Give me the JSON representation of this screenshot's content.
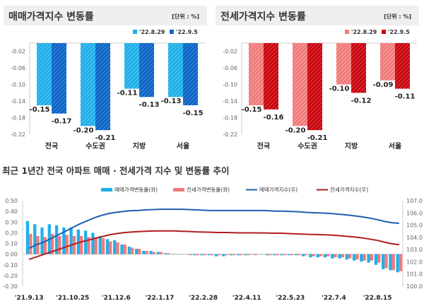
{
  "colors": {
    "sale_light": "#1fb0ea",
    "sale_dark": "#0a64c8",
    "jeonse_light": "#f27a7a",
    "jeonse_dark": "#c8000a",
    "sale_line": "#1e5fae",
    "jeonse_line": "#b01e1e",
    "title_bg": "#efefef"
  },
  "chart_data": [
    {
      "type": "bar",
      "title": "매매가격지수 변동률",
      "unit": "[단위 : %]",
      "categories": [
        "전국",
        "수도권",
        "지방",
        "서울"
      ],
      "series": [
        {
          "name": "'22.8.29",
          "values": [
            -0.15,
            -0.2,
            -0.11,
            -0.13
          ]
        },
        {
          "name": "'22.9.5",
          "values": [
            -0.17,
            -0.21,
            -0.13,
            -0.15
          ]
        }
      ],
      "ylim": [
        -0.22,
        0
      ],
      "yticks": [
        "-0.02",
        "-0.06",
        "-0.10",
        "-0.14",
        "-0.18",
        "-0.22"
      ],
      "legend": "top-right"
    },
    {
      "type": "bar",
      "title": "전세가격지수 변동률",
      "unit": "[단위 : %]",
      "categories": [
        "전국",
        "수도권",
        "지방",
        "서울"
      ],
      "series": [
        {
          "name": "'22.8.29",
          "values": [
            -0.15,
            -0.2,
            -0.1,
            -0.09
          ]
        },
        {
          "name": "'22.9.5",
          "values": [
            -0.16,
            -0.21,
            -0.12,
            -0.11
          ]
        }
      ],
      "ylim": [
        -0.22,
        0
      ],
      "yticks": [
        "-0.02",
        "-0.06",
        "-0.10",
        "-0.14",
        "-0.18",
        "-0.22"
      ],
      "legend": "top-right"
    },
    {
      "type": "bar+line",
      "title": "최근 1년간 전국 아파트 매매 · 전세가격 지수 및 변동률 추이",
      "xticks": [
        "'21.9.13",
        "'21.10.25",
        "'21.12.6",
        "'22.1.17",
        "'22.2.28",
        "'22.4.11",
        "'22.5.23",
        "'22.7.4",
        "'22.8.15"
      ],
      "ylim_left": [
        -0.3,
        0.5
      ],
      "yticks_left": [
        "0.50",
        "0.40",
        "0.30",
        "0.20",
        "0.10",
        "0.00",
        "-0.10",
        "-0.20",
        "-0.30"
      ],
      "ylim_right": [
        100.0,
        107.0
      ],
      "yticks_right": [
        "107.0",
        "106.0",
        "105.0",
        "104.0",
        "103.0",
        "102.0",
        "101.0",
        "100.0"
      ],
      "legend": "top",
      "series": [
        {
          "name": "매매가격변동률(좌)",
          "kind": "bar",
          "axis": "left",
          "values": [
            0.31,
            0.28,
            0.25,
            0.28,
            0.27,
            0.25,
            0.25,
            0.23,
            0.22,
            0.2,
            0.17,
            0.14,
            0.13,
            0.09,
            0.07,
            0.05,
            0.03,
            0.03,
            0.02,
            0.01,
            0.0,
            0.0,
            0.0,
            -0.01,
            -0.01,
            -0.01,
            -0.02,
            -0.02,
            -0.01,
            -0.01,
            -0.01,
            0.0,
            0.0,
            -0.01,
            -0.01,
            -0.01,
            -0.01,
            -0.01,
            -0.02,
            -0.03,
            -0.03,
            -0.03,
            -0.04,
            -0.04,
            -0.05,
            -0.06,
            -0.07,
            -0.08,
            -0.1,
            -0.14,
            -0.15,
            -0.17
          ]
        },
        {
          "name": "전세가격변동률(좌)",
          "kind": "bar",
          "axis": "left",
          "values": [
            0.19,
            0.17,
            0.16,
            0.19,
            0.17,
            0.18,
            0.17,
            0.17,
            0.16,
            0.16,
            0.15,
            0.12,
            0.11,
            0.09,
            0.06,
            0.05,
            0.03,
            0.02,
            0.02,
            0.01,
            0.0,
            0.0,
            -0.01,
            -0.01,
            -0.01,
            -0.01,
            -0.01,
            -0.01,
            -0.01,
            -0.01,
            -0.01,
            -0.01,
            0.0,
            -0.01,
            -0.01,
            -0.01,
            -0.01,
            -0.01,
            -0.01,
            -0.02,
            -0.02,
            -0.02,
            -0.03,
            -0.03,
            -0.04,
            -0.05,
            -0.06,
            -0.06,
            -0.08,
            -0.13,
            -0.15,
            -0.16
          ]
        },
        {
          "name": "매매가격지수(우)",
          "kind": "line",
          "axis": "right",
          "values": [
            103.1,
            103.4,
            103.6,
            103.9,
            104.2,
            104.5,
            104.8,
            105.1,
            105.35,
            105.6,
            105.8,
            105.95,
            106.05,
            106.12,
            106.18,
            106.2,
            106.25,
            106.27,
            106.3,
            106.3,
            106.3,
            106.3,
            106.28,
            106.25,
            106.22,
            106.2,
            106.2,
            106.2,
            106.2,
            106.2,
            106.2,
            106.2,
            106.2,
            106.18,
            106.15,
            106.15,
            106.12,
            106.1,
            106.05,
            106.02,
            106.0,
            105.97,
            105.93,
            105.88,
            105.82,
            105.75,
            105.67,
            105.57,
            105.45,
            105.3,
            105.2,
            105.15
          ]
        },
        {
          "name": "전세가격지수(우)",
          "kind": "line",
          "axis": "right",
          "values": [
            102.2,
            102.4,
            102.6,
            102.8,
            103.0,
            103.2,
            103.4,
            103.6,
            103.75,
            103.9,
            104.05,
            104.2,
            104.3,
            104.38,
            104.43,
            104.47,
            104.5,
            104.52,
            104.53,
            104.53,
            104.53,
            104.5,
            104.48,
            104.45,
            104.43,
            104.42,
            104.4,
            104.4,
            104.38,
            104.37,
            104.37,
            104.37,
            104.36,
            104.35,
            104.34,
            104.33,
            104.3,
            104.28,
            104.26,
            104.24,
            104.22,
            104.2,
            104.17,
            104.12,
            104.07,
            104.02,
            103.95,
            103.85,
            103.75,
            103.6,
            103.47,
            103.4
          ]
        }
      ]
    }
  ]
}
